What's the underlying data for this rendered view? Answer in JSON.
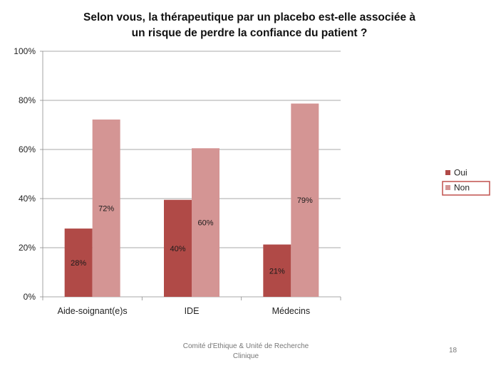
{
  "chart_data": {
    "type": "bar",
    "title": "Selon vous, la thérapeutique par un placebo est-elle associée à un risque de perdre la confiance du patient ?",
    "title_lines": [
      "Selon vous, la thérapeutique par un placebo est-elle associée à",
      "un risque de perdre la confiance du patient ?"
    ],
    "categories": [
      "Aide-soignant(e)s",
      "IDE",
      "Médecins"
    ],
    "series": [
      {
        "name": "Oui",
        "values": [
          28,
          40,
          21
        ],
        "labels": [
          "28%",
          "40%",
          "21%"
        ],
        "color": "#b04a47"
      },
      {
        "name": "Non",
        "values": [
          72,
          60,
          79
        ],
        "labels": [
          "72%",
          "60%",
          "79%"
        ],
        "color": "#d49594"
      }
    ],
    "plotted_values": [
      [
        27.8,
        39.5,
        21.3
      ],
      [
        72.2,
        60.5,
        78.7
      ]
    ],
    "ylim": [
      0,
      100
    ],
    "yticks": [
      0,
      20,
      40,
      60,
      80,
      100
    ],
    "ytick_labels": [
      "0%",
      "20%",
      "40%",
      "60%",
      "80%",
      "100%"
    ],
    "xlabel": "",
    "ylabel": "",
    "grid": true,
    "legend_position": "right",
    "highlighted_legend_entry": "Non",
    "highlight_color": "#c0504d"
  },
  "footer": {
    "lines": [
      "Comité d'Ethique & Unité de Recherche",
      "Clinique"
    ],
    "page_number": "18"
  }
}
